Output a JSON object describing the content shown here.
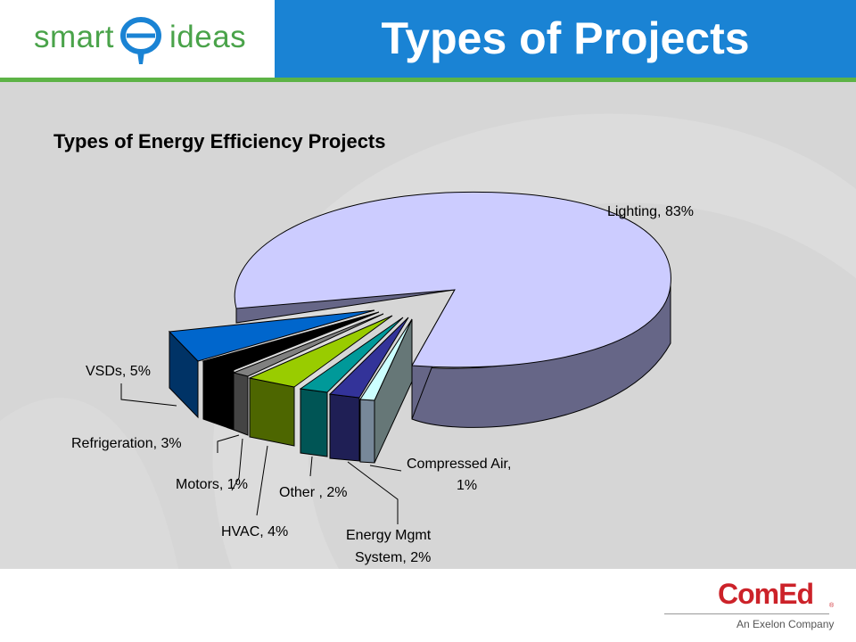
{
  "brand": {
    "logo_left": "smart",
    "logo_right": "ideas",
    "footer_logo": "ComEd",
    "footer_sub": "An Exelon Company",
    "footer_reg": "®",
    "colors": {
      "header_blue": "#1a83d4",
      "green": "#5db346",
      "logo_green": "#4aa34a",
      "comed_red": "#cc2229"
    }
  },
  "slide": {
    "title": "Types of Projects"
  },
  "chart_data": {
    "type": "pie",
    "title": "Types of Energy Efficiency Projects",
    "slices": [
      {
        "label": "Lighting, 83%",
        "value": 83,
        "color": "#ccccff"
      },
      {
        "label": "VSDs, 5%",
        "value": 5,
        "color": "#0066cc"
      },
      {
        "label": "Refrigeration, 3%",
        "value": 3,
        "color": "#000000"
      },
      {
        "label": "Motors, 1%",
        "value": 1,
        "color": "#808080"
      },
      {
        "label": "HVAC, 4%",
        "value": 4,
        "color": "#99cc00"
      },
      {
        "label": "Other , 2%",
        "value": 2,
        "color": "#009999"
      },
      {
        "label": "Energy Mgmt System, 2%",
        "value": 2,
        "color": "#333399"
      },
      {
        "label": "Compressed Air, 1%",
        "value": 1,
        "color": "#ccffff"
      }
    ],
    "label_lines": {
      "lighting": [
        "Lighting, 83%"
      ],
      "vsds": [
        "VSDs, 5%"
      ],
      "refrigeration": [
        "Refrigeration, 3%"
      ],
      "motors": [
        "Motors, 1%"
      ],
      "hvac": [
        "HVAC, 4%"
      ],
      "other": [
        "Other , 2%"
      ],
      "ems": [
        "Energy Mgmt",
        "System, 2%"
      ],
      "compressed": [
        "Compressed Air,",
        "1%"
      ]
    }
  }
}
